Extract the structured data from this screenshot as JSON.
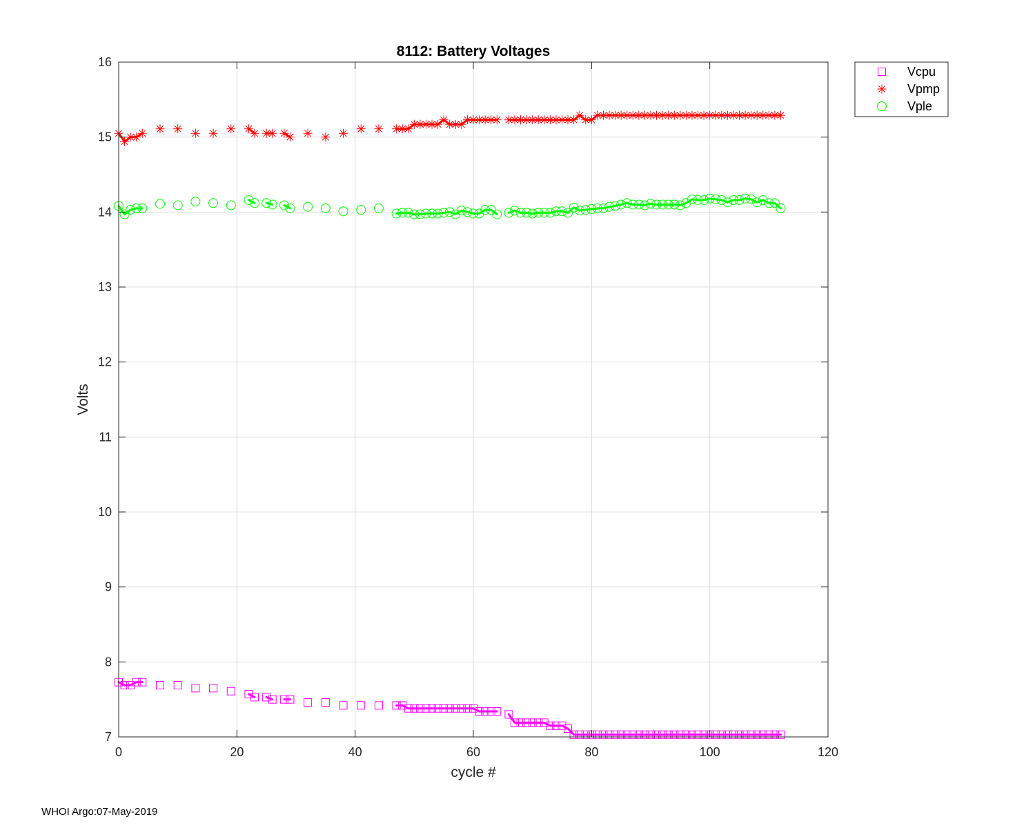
{
  "chart_data": {
    "type": "line",
    "title": "8112: Battery Voltages",
    "xlabel": "cycle #",
    "ylabel": "Volts",
    "xlim": [
      0,
      120
    ],
    "ylim": [
      7,
      16
    ],
    "xticks": [
      0,
      20,
      40,
      60,
      80,
      100,
      120
    ],
    "yticks": [
      7,
      8,
      9,
      10,
      11,
      12,
      13,
      14,
      15,
      16
    ],
    "grid": true,
    "legend_position": "outside top-right",
    "series": [
      {
        "name": "Vcpu",
        "color": "#ff00ff",
        "marker": "square",
        "x": [
          0,
          1,
          2,
          3,
          4,
          7,
          10,
          13,
          16,
          19,
          22,
          23,
          25,
          26,
          28,
          29,
          32,
          35,
          38,
          41,
          44,
          47,
          48,
          49,
          50,
          51,
          52,
          53,
          54,
          55,
          56,
          57,
          58,
          59,
          60,
          61,
          62,
          63,
          64,
          66,
          67,
          68,
          69,
          70,
          71,
          72,
          73,
          74,
          75,
          76,
          77,
          78,
          79,
          80,
          81,
          82,
          83,
          84,
          85,
          86,
          87,
          88,
          89,
          90,
          91,
          92,
          93,
          94,
          95,
          96,
          97,
          98,
          99,
          100,
          101,
          102,
          103,
          104,
          105,
          106,
          107,
          108,
          109,
          110,
          111,
          112
        ],
        "y": [
          7.73,
          7.69,
          7.69,
          7.73,
          7.73,
          7.69,
          7.69,
          7.65,
          7.65,
          7.61,
          7.57,
          7.53,
          7.53,
          7.5,
          7.5,
          7.5,
          7.46,
          7.46,
          7.42,
          7.42,
          7.42,
          7.42,
          7.42,
          7.38,
          7.38,
          7.38,
          7.38,
          7.38,
          7.38,
          7.38,
          7.38,
          7.38,
          7.38,
          7.38,
          7.38,
          7.34,
          7.34,
          7.34,
          7.34,
          7.3,
          7.19,
          7.19,
          7.19,
          7.19,
          7.19,
          7.19,
          7.15,
          7.15,
          7.15,
          7.11,
          7.03,
          7.03,
          7.03,
          7.03,
          7.03,
          7.03,
          7.03,
          7.03,
          7.03,
          7.03,
          7.03,
          7.03,
          7.03,
          7.03,
          7.03,
          7.03,
          7.03,
          7.03,
          7.03,
          7.03,
          7.03,
          7.03,
          7.03,
          7.03,
          7.03,
          7.03,
          7.03,
          7.03,
          7.03,
          7.03,
          7.03,
          7.03,
          7.03,
          7.03,
          7.03,
          7.03
        ]
      },
      {
        "name": "Vpmp",
        "color": "#ff0000",
        "marker": "asterisk",
        "x": [
          0,
          1,
          2,
          3,
          4,
          7,
          10,
          13,
          16,
          19,
          22,
          23,
          25,
          26,
          28,
          29,
          32,
          35,
          38,
          41,
          44,
          47,
          48,
          49,
          50,
          51,
          52,
          53,
          54,
          55,
          56,
          57,
          58,
          59,
          60,
          61,
          62,
          63,
          64,
          66,
          67,
          68,
          69,
          70,
          71,
          72,
          73,
          74,
          75,
          76,
          77,
          78,
          79,
          80,
          81,
          82,
          83,
          84,
          85,
          86,
          87,
          88,
          89,
          90,
          91,
          92,
          93,
          94,
          95,
          96,
          97,
          98,
          99,
          100,
          101,
          102,
          103,
          104,
          105,
          106,
          107,
          108,
          109,
          110,
          111,
          112
        ],
        "y": [
          15.05,
          14.94,
          15.0,
          15.0,
          15.05,
          15.11,
          15.11,
          15.05,
          15.05,
          15.11,
          15.11,
          15.05,
          15.05,
          15.05,
          15.05,
          15.0,
          15.05,
          15.0,
          15.05,
          15.11,
          15.11,
          15.11,
          15.11,
          15.11,
          15.17,
          15.17,
          15.17,
          15.17,
          15.17,
          15.23,
          15.17,
          15.17,
          15.17,
          15.23,
          15.23,
          15.23,
          15.23,
          15.23,
          15.23,
          15.23,
          15.23,
          15.23,
          15.23,
          15.23,
          15.23,
          15.23,
          15.23,
          15.23,
          15.23,
          15.23,
          15.23,
          15.29,
          15.23,
          15.23,
          15.29,
          15.29,
          15.29,
          15.29,
          15.29,
          15.29,
          15.29,
          15.29,
          15.29,
          15.29,
          15.29,
          15.29,
          15.29,
          15.29,
          15.29,
          15.29,
          15.29,
          15.29,
          15.29,
          15.29,
          15.29,
          15.29,
          15.29,
          15.29,
          15.29,
          15.29,
          15.29,
          15.29,
          15.29,
          15.29,
          15.29,
          15.29
        ]
      },
      {
        "name": "Vple",
        "color": "#00ff00",
        "marker": "circle",
        "x": [
          0,
          1,
          2,
          3,
          4,
          7,
          10,
          13,
          16,
          19,
          22,
          23,
          25,
          26,
          28,
          29,
          32,
          35,
          38,
          41,
          44,
          47,
          48,
          49,
          50,
          51,
          52,
          53,
          54,
          55,
          56,
          57,
          58,
          59,
          60,
          61,
          62,
          63,
          64,
          66,
          67,
          68,
          69,
          70,
          71,
          72,
          73,
          74,
          75,
          76,
          77,
          78,
          79,
          80,
          81,
          82,
          83,
          84,
          85,
          86,
          87,
          88,
          89,
          90,
          91,
          92,
          93,
          94,
          95,
          96,
          97,
          98,
          99,
          100,
          101,
          102,
          103,
          104,
          105,
          106,
          107,
          108,
          109,
          110,
          111,
          112
        ],
        "y": [
          14.08,
          13.97,
          14.03,
          14.05,
          14.05,
          14.11,
          14.09,
          14.14,
          14.12,
          14.09,
          14.16,
          14.12,
          14.12,
          14.1,
          14.09,
          14.05,
          14.07,
          14.05,
          14.01,
          14.03,
          14.05,
          13.98,
          13.99,
          13.99,
          13.97,
          13.97,
          13.98,
          13.98,
          13.98,
          13.99,
          14.0,
          13.97,
          14.02,
          14.0,
          13.98,
          13.98,
          14.03,
          14.03,
          13.97,
          13.99,
          14.02,
          13.99,
          13.99,
          13.98,
          13.99,
          13.99,
          13.99,
          14.01,
          14.01,
          13.99,
          14.06,
          14.02,
          14.03,
          14.04,
          14.05,
          14.05,
          14.07,
          14.08,
          14.1,
          14.12,
          14.1,
          14.1,
          14.09,
          14.11,
          14.1,
          14.1,
          14.1,
          14.1,
          14.09,
          14.12,
          14.17,
          14.16,
          14.16,
          14.18,
          14.17,
          14.16,
          14.13,
          14.16,
          14.16,
          14.18,
          14.17,
          14.13,
          14.16,
          14.12,
          14.12,
          14.05
        ]
      }
    ]
  },
  "footer": "WHOI Argo:07-May-2019"
}
